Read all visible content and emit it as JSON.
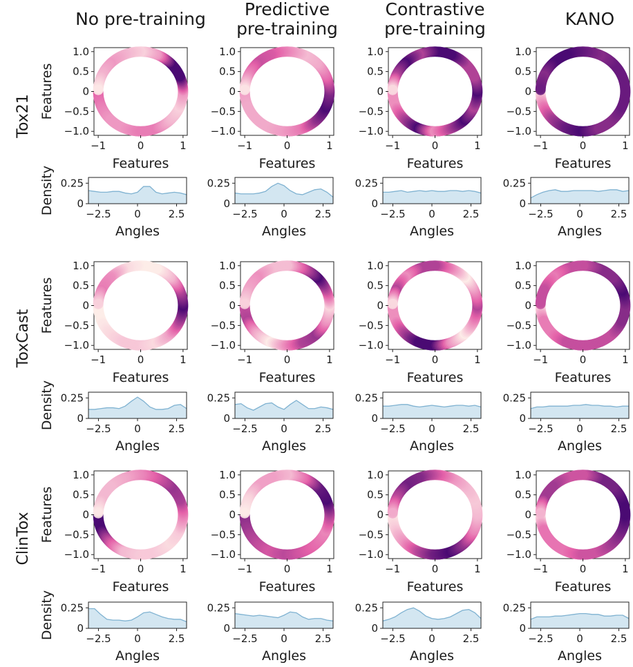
{
  "columns": [
    "No pre-training",
    "Predictive\npre-training",
    "Contrastive\npre-training",
    "KANO"
  ],
  "rows": [
    "Tox21",
    "ToxCast",
    "ClinTox"
  ],
  "colors": {
    "light": "#fdece8",
    "mid": "#e360a8",
    "dark": "#4a0a73",
    "density_fill": "#d3e6f1",
    "density_line": "#7fb2d1"
  },
  "chart_data": {
    "type": "scatter",
    "panel_kinds": [
      "circle-feature-scatter",
      "angle-density"
    ],
    "circle_xlabel": "Features",
    "circle_ylabel": "Features",
    "circle_xticks": [
      "−1",
      "0",
      "1"
    ],
    "circle_yticks": [
      "1.0",
      "0.5",
      "0",
      "−0.5",
      "−1.0"
    ],
    "circle_xlim": [
      -1.1,
      1.1
    ],
    "circle_ylim": [
      -1.1,
      1.1
    ],
    "density_xlabel": "Angles",
    "density_ylabel": "Density",
    "density_xticks": [
      "−2.5",
      "0",
      "2.5"
    ],
    "density_yticks": [
      "0.25",
      "0"
    ],
    "density_xlim": [
      -3.14,
      3.14
    ],
    "density_ylim": [
      0,
      0.32
    ],
    "angles": [
      -3.14,
      -2.75,
      -2.36,
      -1.96,
      -1.57,
      -1.18,
      -0.79,
      -0.39,
      0.0,
      0.39,
      0.79,
      1.18,
      1.57,
      1.96,
      2.36,
      2.75,
      3.14
    ],
    "panels": [
      {
        "row": "Tox21",
        "column": "No pre-training",
        "density": [
          0.16,
          0.15,
          0.14,
          0.14,
          0.15,
          0.15,
          0.13,
          0.12,
          0.14,
          0.21,
          0.21,
          0.14,
          0.12,
          0.13,
          0.14,
          0.13,
          0.11
        ]
      },
      {
        "row": "Tox21",
        "column": "Predictive pre-training",
        "density": [
          0.13,
          0.12,
          0.12,
          0.12,
          0.13,
          0.15,
          0.21,
          0.25,
          0.22,
          0.16,
          0.12,
          0.11,
          0.14,
          0.17,
          0.18,
          0.14,
          0.08
        ]
      },
      {
        "row": "Tox21",
        "column": "Contrastive pre-training",
        "density": [
          0.14,
          0.14,
          0.15,
          0.16,
          0.14,
          0.15,
          0.16,
          0.15,
          0.16,
          0.15,
          0.15,
          0.16,
          0.16,
          0.15,
          0.16,
          0.15,
          0.13
        ]
      },
      {
        "row": "Tox21",
        "column": "KANO",
        "density": [
          0.07,
          0.11,
          0.14,
          0.16,
          0.17,
          0.15,
          0.15,
          0.16,
          0.16,
          0.16,
          0.16,
          0.15,
          0.16,
          0.17,
          0.17,
          0.15,
          0.16
        ]
      },
      {
        "row": "ToxCast",
        "column": "No pre-training",
        "density": [
          0.11,
          0.11,
          0.12,
          0.13,
          0.13,
          0.12,
          0.15,
          0.21,
          0.26,
          0.21,
          0.14,
          0.11,
          0.11,
          0.12,
          0.16,
          0.17,
          0.12
        ]
      },
      {
        "row": "ToxCast",
        "column": "Predictive pre-training",
        "density": [
          0.17,
          0.18,
          0.13,
          0.1,
          0.14,
          0.18,
          0.19,
          0.14,
          0.11,
          0.17,
          0.22,
          0.17,
          0.12,
          0.12,
          0.14,
          0.13,
          0.11
        ]
      },
      {
        "row": "ToxCast",
        "column": "Contrastive pre-training",
        "density": [
          0.15,
          0.15,
          0.16,
          0.17,
          0.17,
          0.15,
          0.14,
          0.15,
          0.16,
          0.15,
          0.14,
          0.15,
          0.16,
          0.16,
          0.15,
          0.16,
          0.14
        ]
      },
      {
        "row": "ToxCast",
        "column": "KANO",
        "density": [
          0.12,
          0.14,
          0.14,
          0.15,
          0.15,
          0.15,
          0.15,
          0.16,
          0.16,
          0.17,
          0.16,
          0.16,
          0.15,
          0.15,
          0.14,
          0.15,
          0.15
        ]
      },
      {
        "row": "ClinTox",
        "column": "No pre-training",
        "density": [
          0.24,
          0.24,
          0.17,
          0.11,
          0.1,
          0.1,
          0.09,
          0.1,
          0.14,
          0.19,
          0.2,
          0.17,
          0.14,
          0.12,
          0.11,
          0.11,
          0.08
        ]
      },
      {
        "row": "ClinTox",
        "column": "Predictive pre-training",
        "density": [
          0.18,
          0.17,
          0.16,
          0.15,
          0.16,
          0.15,
          0.14,
          0.13,
          0.16,
          0.2,
          0.19,
          0.14,
          0.11,
          0.12,
          0.12,
          0.1,
          0.09
        ]
      },
      {
        "row": "ClinTox",
        "column": "Contrastive pre-training",
        "density": [
          0.09,
          0.11,
          0.14,
          0.19,
          0.23,
          0.25,
          0.21,
          0.15,
          0.12,
          0.11,
          0.12,
          0.14,
          0.18,
          0.22,
          0.23,
          0.19,
          0.12
        ]
      },
      {
        "row": "ClinTox",
        "column": "KANO",
        "density": [
          0.11,
          0.14,
          0.14,
          0.14,
          0.15,
          0.15,
          0.16,
          0.17,
          0.18,
          0.18,
          0.17,
          0.17,
          0.15,
          0.15,
          0.16,
          0.16,
          0.12
        ]
      }
    ]
  }
}
